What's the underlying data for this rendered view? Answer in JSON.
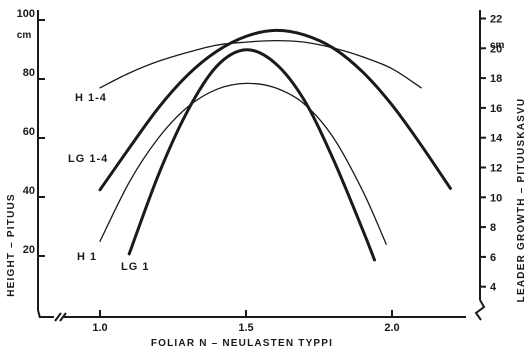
{
  "chart_data": {
    "type": "line",
    "xlabel": "FOLIAR  N – NEULASTEN  TYPPI",
    "ylabel_left": "HEIGHT – PITUUS",
    "ylabel_right": "LEADER  GROWTH – PITUUSKASVU",
    "unit_left": "cm",
    "unit_right": "cm",
    "xlim": [
      0.75,
      2.25
    ],
    "ylim_left": [
      0,
      100
    ],
    "ylim_right": [
      2,
      22
    ],
    "x_ticks": [
      1.0,
      1.5,
      2.0
    ],
    "x_tick_labels": [
      "1.0",
      "1.5",
      "2.0"
    ],
    "y_left_ticks": [
      20,
      40,
      60,
      80,
      100
    ],
    "y_left_tick_labels": [
      "20",
      "40",
      "60",
      "80",
      "100"
    ],
    "y_right_ticks": [
      4,
      6,
      8,
      10,
      12,
      14,
      16,
      18,
      20,
      22
    ],
    "y_right_tick_labels": [
      "4",
      "6",
      "8",
      "10",
      "12",
      "14",
      "16",
      "18",
      "20",
      "22"
    ],
    "series": [
      {
        "name": "H 1-4",
        "axis": "left",
        "weight": "thin",
        "x": [
          1.0,
          1.1,
          1.2,
          1.3,
          1.4,
          1.5,
          1.6,
          1.7,
          1.8,
          1.9,
          2.0,
          2.1
        ],
        "y": [
          77,
          82,
          86,
          89,
          91.5,
          92.5,
          93,
          92.5,
          90.5,
          87.5,
          83.5,
          77
        ]
      },
      {
        "name": "LG 1-4",
        "axis": "right",
        "weight": "thick",
        "x": [
          1.0,
          1.1,
          1.2,
          1.3,
          1.4,
          1.5,
          1.6,
          1.7,
          1.8,
          1.9,
          2.0,
          2.1,
          2.2
        ],
        "y": [
          10.5,
          13.3,
          16,
          18.2,
          19.8,
          20.8,
          21.2,
          20.9,
          20.0,
          18.4,
          16.2,
          13.5,
          10.6
        ]
      },
      {
        "name": "H 1",
        "axis": "left",
        "weight": "thin",
        "x": [
          1.0,
          1.1,
          1.2,
          1.3,
          1.4,
          1.5,
          1.6,
          1.7,
          1.8,
          1.9,
          1.98
        ],
        "y": [
          25,
          45,
          60,
          70.5,
          76.5,
          78.5,
          77,
          71.5,
          60,
          42,
          24
        ]
      },
      {
        "name": "LG 1",
        "axis": "right",
        "weight": "thick",
        "x": [
          1.1,
          1.2,
          1.3,
          1.4,
          1.5,
          1.6,
          1.7,
          1.8,
          1.9,
          1.94
        ],
        "y": [
          6.2,
          11.5,
          15.8,
          18.8,
          19.9,
          19.0,
          16.5,
          12.5,
          7.8,
          5.8
        ]
      }
    ]
  }
}
